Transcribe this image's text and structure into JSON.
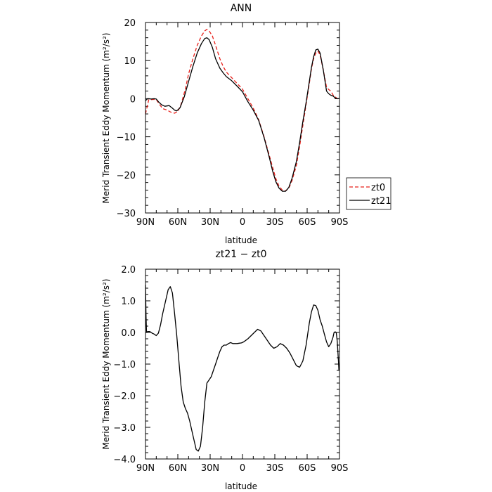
{
  "colors": {
    "zt0": "#e8201a",
    "zt21": "#000000",
    "axes": "#000000"
  },
  "chart_data": [
    {
      "type": "line",
      "title": "ANN",
      "xlabel": "latitude",
      "ylabel": "Merid Transient Eddy Momentum (m²/s²)",
      "xlim": [
        -90,
        90
      ],
      "ylim": [
        -30,
        20
      ],
      "x_ticks": [
        -90,
        -60,
        -30,
        0,
        30,
        60,
        90
      ],
      "x_ticklabels": [
        "90N",
        "60N",
        "30N",
        "0",
        "30S",
        "60S",
        "90S"
      ],
      "y_ticks": [
        -30,
        -20,
        -10,
        0,
        10,
        20
      ],
      "y_ticklabels": [
        "−30",
        "−20",
        "−10",
        "0",
        "10",
        "20"
      ],
      "legend": "right-outside",
      "series": [
        {
          "name": "zt0",
          "style": "dashed",
          "x": [
            -90,
            -87,
            -83,
            -80,
            -77,
            -74,
            -70,
            -66,
            -63,
            -60,
            -57,
            -53,
            -50,
            -46,
            -42,
            -38,
            -35,
            -33,
            -31,
            -28,
            -25,
            -21,
            -18,
            -15,
            -10,
            -5,
            0,
            5,
            10,
            15,
            20,
            25,
            28,
            31,
            34,
            37,
            40,
            43,
            46,
            50,
            53,
            56,
            59,
            62,
            64,
            66,
            68,
            70,
            72,
            75,
            78,
            80,
            82,
            84,
            86,
            88,
            90
          ],
          "y": [
            -4.0,
            -0.3,
            -0.2,
            -0.2,
            -1.5,
            -2.6,
            -3.0,
            -3.6,
            -3.8,
            -3.4,
            -1.5,
            2.5,
            6.5,
            10.5,
            14.0,
            16.5,
            17.8,
            18.2,
            17.8,
            16.5,
            14.0,
            10.5,
            8.5,
            7.0,
            5.5,
            4.0,
            2.5,
            0.0,
            -2.5,
            -5.5,
            -10.0,
            -15.0,
            -18.0,
            -21.0,
            -23.0,
            -24.0,
            -24.2,
            -23.5,
            -21.5,
            -17.5,
            -12.5,
            -7.0,
            -1.5,
            4.0,
            7.8,
            10.5,
            12.0,
            12.5,
            11.5,
            7.5,
            3.0,
            2.4,
            2.0,
            1.0,
            0.5,
            0.0,
            -0.1
          ]
        },
        {
          "name": "zt21",
          "style": "solid",
          "x": [
            -90,
            -88,
            -85,
            -82,
            -80,
            -78,
            -75,
            -72,
            -68,
            -65,
            -63,
            -61,
            -58,
            -54,
            -50,
            -46,
            -42,
            -38,
            -35,
            -33,
            -31,
            -28,
            -25,
            -21,
            -18,
            -15,
            -10,
            -5,
            0,
            5,
            10,
            15,
            20,
            25,
            28,
            31,
            34,
            37,
            40,
            43,
            46,
            50,
            53,
            56,
            59,
            62,
            64,
            66,
            68,
            70,
            72,
            75,
            78,
            80,
            82,
            84,
            86,
            88,
            90
          ],
          "y": [
            -0.5,
            0.0,
            -0.1,
            0.0,
            -0.1,
            -0.8,
            -1.6,
            -2.0,
            -1.8,
            -2.5,
            -3.0,
            -3.2,
            -2.4,
            0.5,
            4.5,
            8.5,
            12.0,
            14.5,
            15.8,
            16.0,
            15.5,
            13.5,
            10.5,
            8.0,
            6.8,
            5.8,
            4.7,
            3.3,
            1.8,
            -0.8,
            -3.0,
            -5.7,
            -10.2,
            -15.5,
            -19.0,
            -21.8,
            -23.5,
            -24.3,
            -24.3,
            -23.3,
            -20.9,
            -16.5,
            -11.5,
            -6.0,
            -1.0,
            4.5,
            8.2,
            11.0,
            12.8,
            13.0,
            12.0,
            7.5,
            2.0,
            1.3,
            0.9,
            0.7,
            0.2,
            0.0,
            0.0
          ]
        }
      ]
    },
    {
      "type": "line",
      "title": "zt21 − zt0",
      "xlabel": "latitude",
      "ylabel": "Merid Transient Eddy Momentum (m²/s²)",
      "xlim": [
        -90,
        90
      ],
      "ylim": [
        -4.0,
        2.0
      ],
      "x_ticks": [
        -90,
        -60,
        -30,
        0,
        30,
        60,
        90
      ],
      "x_ticklabels": [
        "90N",
        "60N",
        "30N",
        "0",
        "30S",
        "60S",
        "90S"
      ],
      "y_ticks": [
        -4.0,
        -3.0,
        -2.0,
        -1.0,
        0.0,
        1.0,
        2.0
      ],
      "y_ticklabels": [
        "−4.0",
        "−3.0",
        "−2.0",
        "−1.0",
        "0.0",
        "1.0",
        "2.0"
      ],
      "series": [
        {
          "style": "solid",
          "x": [
            -90,
            -89.5,
            -89,
            -88,
            -86,
            -84,
            -82,
            -80,
            -78,
            -76,
            -74,
            -72,
            -70,
            -69,
            -67,
            -65,
            -63,
            -61,
            -59,
            -57,
            -55,
            -53,
            -51,
            -49,
            -47,
            -45,
            -43,
            -41,
            -39,
            -37,
            -35,
            -33,
            -31,
            -29,
            -27,
            -25,
            -23,
            -21,
            -19,
            -17,
            -15,
            -13,
            -11,
            -9,
            -7,
            -5,
            -3,
            -1,
            1,
            3,
            5,
            8,
            11,
            14,
            17,
            20,
            23,
            26,
            29,
            32,
            35,
            38,
            41,
            44,
            47,
            50,
            53,
            56,
            59,
            62,
            64,
            66,
            68,
            70,
            72,
            74,
            76,
            78,
            80,
            82,
            84,
            85,
            86,
            87,
            88,
            89,
            89.5
          ],
          "y": [
            1.5,
            0.5,
            0.0,
            0.03,
            0.03,
            -0.02,
            -0.05,
            -0.1,
            -0.02,
            0.25,
            0.6,
            0.9,
            1.2,
            1.35,
            1.45,
            1.25,
            0.6,
            -0.1,
            -0.9,
            -1.7,
            -2.2,
            -2.4,
            -2.55,
            -2.8,
            -3.1,
            -3.4,
            -3.7,
            -3.75,
            -3.6,
            -3.0,
            -2.2,
            -1.6,
            -1.5,
            -1.4,
            -1.2,
            -1.0,
            -0.8,
            -0.6,
            -0.45,
            -0.4,
            -0.4,
            -0.35,
            -0.32,
            -0.35,
            -0.35,
            -0.35,
            -0.34,
            -0.33,
            -0.3,
            -0.25,
            -0.2,
            -0.1,
            0.0,
            0.1,
            0.05,
            -0.1,
            -0.25,
            -0.4,
            -0.5,
            -0.45,
            -0.35,
            -0.4,
            -0.5,
            -0.65,
            -0.85,
            -1.05,
            -1.1,
            -0.9,
            -0.4,
            0.3,
            0.65,
            0.87,
            0.85,
            0.7,
            0.4,
            0.2,
            -0.05,
            -0.3,
            -0.45,
            -0.35,
            -0.15,
            0.0,
            0.02,
            0.0,
            -0.3,
            -0.9,
            -1.2
          ]
        }
      ]
    }
  ]
}
